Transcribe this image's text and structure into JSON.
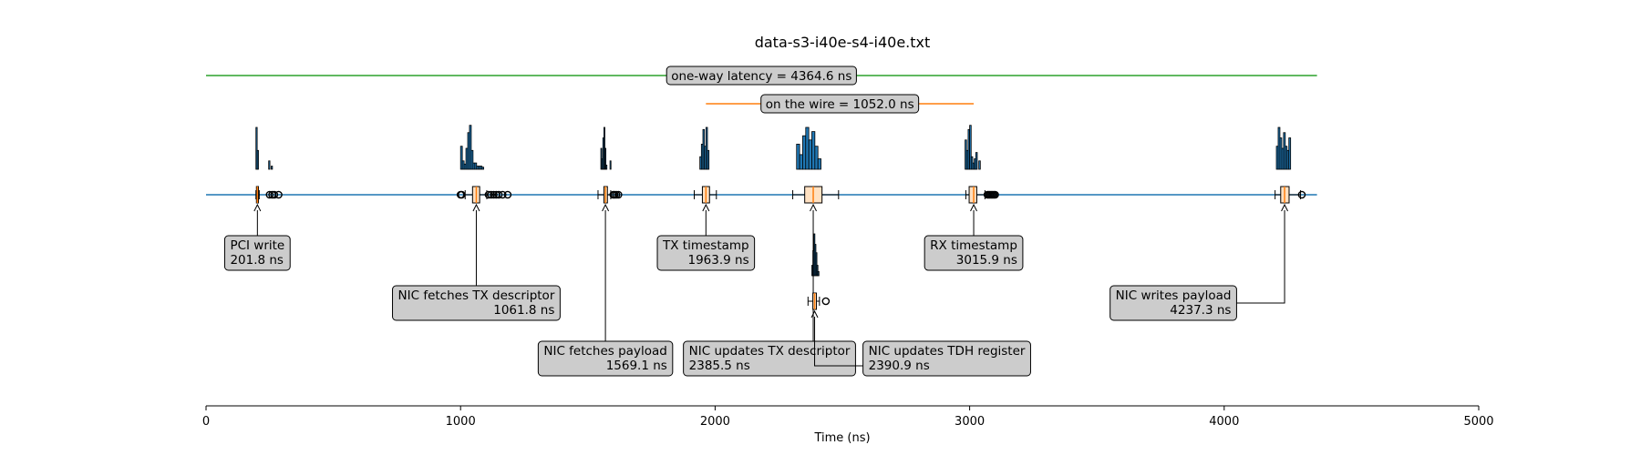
{
  "chart_data": {
    "type": "timeline",
    "title": "data-s3-i40e-s4-i40e.txt",
    "xlabel": "Time (ns)",
    "xlim": [
      0,
      5000
    ],
    "xticks": [
      0,
      1000,
      2000,
      3000,
      4000,
      5000
    ],
    "xtick_labels": [
      "0",
      "1000",
      "2000",
      "3000",
      "4000",
      "5000"
    ],
    "timeline_range": [
      0,
      4364.6
    ],
    "colors": {
      "timeline": "#1f77b4",
      "latency_span": "#2ca02c",
      "wire_span": "#ff7f0e",
      "hist_fill": "#1f77b4",
      "box_fill": "#ffe1c2",
      "median": "#ff7f0e",
      "label_bg": "#cccccc"
    },
    "spans": [
      {
        "name": "latency",
        "text": "one-way latency = 4364.6 ns",
        "start": 0,
        "end": 4364.6
      },
      {
        "name": "wire",
        "text": "on the wire = 1052.0 ns",
        "start": 1963.9,
        "end": 3015.9
      }
    ],
    "events": [
      {
        "label": "PCI write",
        "value_text": "201.8 ns",
        "mean": 201.8,
        "row": 0,
        "label_row": 0,
        "align": "left",
        "box": {
          "q1": 198,
          "median": 201.8,
          "q3": 206,
          "wlo": 196,
          "whi": 209
        },
        "fliers": [
          250,
          260,
          268,
          285
        ],
        "hist": {
          "start": 196,
          "width": 5,
          "heights": [
            40,
            18,
            0,
            0,
            0,
            0,
            0,
            0,
            0,
            0,
            8,
            0,
            3
          ]
        }
      },
      {
        "label": "NIC fetches TX descriptor",
        "value_text": "1061.8 ns",
        "mean": 1061.8,
        "row": 0,
        "label_row": 1,
        "align": "right",
        "box": {
          "q1": 1047,
          "median": 1061.8,
          "q3": 1075,
          "wlo": 1018,
          "whi": 1103
        },
        "fliers": [
          1000,
          1004,
          1110,
          1120,
          1130,
          1140,
          1150,
          1165,
          1185
        ],
        "hist": {
          "start": 1000,
          "width": 7,
          "heights": [
            22,
            8,
            5,
            20,
            35,
            42,
            18,
            6,
            6,
            3,
            3,
            3,
            2
          ]
        }
      },
      {
        "label": "NIC fetches payload",
        "value_text": "1569.1 ns",
        "mean": 1569.1,
        "row": 0,
        "label_row": 2,
        "align": "right",
        "box": {
          "q1": 1563,
          "median": 1569.1,
          "q3": 1577,
          "wlo": 1540,
          "whi": 1590
        },
        "fliers": [
          1600,
          1605,
          1612,
          1620
        ],
        "hist": {
          "start": 1551,
          "width": 4,
          "heights": [
            20,
            10,
            30,
            40,
            20,
            4,
            0,
            0,
            0,
            8
          ]
        }
      },
      {
        "label": "TX timestamp",
        "value_text": "1963.9 ns",
        "mean": 1963.9,
        "row": 0,
        "label_row": 0,
        "align": "right",
        "box": {
          "q1": 1950,
          "median": 1963.9,
          "q3": 1978,
          "wlo": 1918,
          "whi": 2005
        },
        "fliers": [],
        "hist": {
          "start": 1940,
          "width": 6,
          "heights": [
            12,
            24,
            38,
            22,
            40,
            18
          ]
        }
      },
      {
        "label": "NIC updates TX descriptor",
        "value_text": "2385.5 ns",
        "mean": 2385.5,
        "row": 0,
        "label_row": 2,
        "align": "left",
        "box": {
          "q1": 2352,
          "median": 2385.5,
          "q3": 2420,
          "wlo": 2305,
          "whi": 2485
        },
        "fliers": [],
        "hist": {
          "start": 2320,
          "width": 12,
          "heights": [
            24,
            14,
            32,
            40,
            28,
            36,
            22,
            10
          ]
        }
      },
      {
        "label": "NIC updates TDH register",
        "value_text": "2390.9 ns",
        "mean": 2390.9,
        "row": 1,
        "label_row": 2,
        "align": "left",
        "box": {
          "q1": 2384,
          "median": 2390.9,
          "q3": 2398,
          "wlo": 2365,
          "whi": 2410
        },
        "fliers": [
          2435
        ],
        "hist": {
          "start": 2380,
          "width": 4,
          "heights": [
            10,
            24,
            40,
            30,
            22,
            10,
            4
          ]
        }
      },
      {
        "label": "RX timestamp",
        "value_text": "3015.9 ns",
        "mean": 3015.9,
        "row": 0,
        "label_row": 0,
        "align": "right",
        "box": {
          "q1": 2998,
          "median": 3015.9,
          "q3": 3028,
          "wlo": 2985,
          "whi": 3060
        },
        "fliers": [
          3070,
          3075,
          3080,
          3085,
          3090,
          3095,
          3100
        ],
        "hist": {
          "start": 2982,
          "width": 6,
          "heights": [
            28,
            18,
            38,
            42,
            12,
            6,
            10,
            16,
            0,
            8
          ]
        }
      },
      {
        "label": "NIC writes payload",
        "value_text": "4237.3 ns",
        "mean": 4237.3,
        "row": 0,
        "label_row": 1,
        "align": "right",
        "box": {
          "q1": 4222,
          "median": 4237.3,
          "q3": 4255,
          "wlo": 4200,
          "whi": 4300
        },
        "fliers": [
          4305
        ],
        "hist": {
          "start": 4205,
          "width": 7,
          "heights": [
            22,
            40,
            30,
            20,
            35,
            22,
            18,
            30
          ]
        }
      }
    ]
  }
}
